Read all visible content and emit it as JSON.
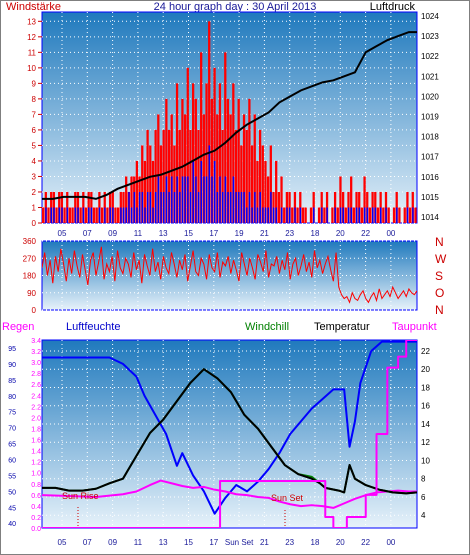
{
  "title": "24 hour graph day : 30 April 2013",
  "colors": {
    "wind": "#ff0000",
    "gust": "#0000ff",
    "pressure": "#000000",
    "humidity": "#0000ff",
    "temperature": "#000000",
    "windchill": "#008000",
    "dewpoint": "#ff00ff",
    "rain": "#ff00ff",
    "axis_red": "#cc0000",
    "axis_blue": "#0000aa",
    "grid": "#ffffff",
    "bg_top": "#1f79bd",
    "bg_bottom": "#e7f2fa"
  },
  "labels": {
    "windstaerke": "Windstärke",
    "luftdruck": "Luftdruck",
    "regen": "Regen",
    "luftfeuchte": "Luftfeuchte",
    "windchill": "Windchill",
    "temperatur": "Temperatur",
    "taupunkt": "Taupunkt",
    "sun_rise": "Sun Rise",
    "sun_set": "Sun Set",
    "sun_set_axis": "Sun Set",
    "dir_n_top": "N",
    "dir_w": "W",
    "dir_s": "S",
    "dir_o": "O",
    "dir_n_bottom": "N"
  },
  "chart_data": [
    {
      "type": "bar",
      "name": "wind",
      "x_ticks": [
        "05",
        "07",
        "09",
        "11",
        "13",
        "15",
        "17",
        "19",
        "21",
        "23",
        "18",
        "20",
        "22",
        "00"
      ],
      "y_left": {
        "label": "Windstärke",
        "ticks": [
          0,
          1,
          2,
          3,
          4,
          5,
          6,
          7,
          8,
          9,
          10,
          11,
          12,
          13
        ],
        "range": [
          0,
          13.6
        ]
      },
      "y_right": {
        "label": "Luftdruck",
        "ticks": [
          1014,
          1015,
          1016,
          1017,
          1018,
          1019,
          1020,
          1021,
          1022,
          1023,
          1024
        ],
        "range": [
          1013.7,
          1024.2
        ]
      },
      "grid": true,
      "series": [
        {
          "name": "Windstärke",
          "kind": "bar-red",
          "values": [
            1,
            2,
            1,
            2,
            2,
            1,
            2,
            2,
            1,
            2,
            1,
            1,
            2,
            2,
            1,
            2,
            1,
            2,
            2,
            1,
            1,
            2,
            1,
            2,
            1,
            2,
            2,
            1,
            1,
            2,
            2,
            3,
            2,
            3,
            3,
            4,
            3,
            5,
            4,
            6,
            5,
            4,
            6,
            7,
            5,
            6,
            8,
            6,
            7,
            5,
            9,
            6,
            8,
            7,
            10,
            6,
            9,
            8,
            6,
            11,
            7,
            9,
            13,
            8,
            10,
            7,
            9,
            6,
            11,
            8,
            7,
            9,
            6,
            8,
            5,
            7,
            6,
            8,
            5,
            7,
            4,
            6,
            5,
            4,
            3,
            5,
            2,
            4,
            2,
            3,
            1,
            2,
            2,
            1,
            2,
            1,
            2,
            1,
            1,
            0,
            1,
            2,
            0,
            1,
            2,
            1,
            2,
            0,
            1,
            2,
            1,
            3,
            2,
            1,
            2,
            3,
            1,
            2,
            2,
            1,
            3,
            2,
            1,
            2,
            2,
            1,
            2,
            1,
            2,
            1,
            0,
            1,
            2,
            1,
            0,
            1,
            2,
            1,
            2,
            1
          ]
        },
        {
          "name": "Böen",
          "kind": "bar-blue",
          "values": [
            0,
            1,
            0,
            1,
            1,
            0,
            1,
            1,
            0,
            1,
            0,
            0,
            1,
            1,
            0,
            1,
            0,
            1,
            1,
            0,
            0,
            1,
            0,
            1,
            0,
            1,
            1,
            0,
            0,
            1,
            1,
            1,
            2,
            1,
            2,
            1,
            2,
            2,
            1,
            2,
            2,
            1,
            2,
            3,
            2,
            2,
            3,
            2,
            3,
            2,
            3,
            2,
            3,
            3,
            3,
            2,
            4,
            3,
            2,
            4,
            3,
            3,
            5,
            3,
            4,
            2,
            3,
            2,
            3,
            2,
            2,
            3,
            2,
            2,
            2,
            2,
            1,
            2,
            1,
            2,
            1,
            2,
            1,
            1,
            1,
            2,
            1,
            1,
            0,
            1,
            0,
            1,
            1,
            0,
            1,
            0,
            1,
            0,
            0,
            0,
            0,
            1,
            0,
            0,
            1,
            0,
            1,
            0,
            0,
            1,
            0,
            1,
            1,
            0,
            1,
            1,
            0,
            1,
            1,
            0,
            1,
            1,
            0,
            1,
            1,
            0,
            1,
            0,
            1,
            0,
            0,
            0,
            1,
            0,
            0,
            0,
            1,
            0,
            1,
            0
          ]
        },
        {
          "name": "Luftdruck",
          "kind": "line",
          "x": [
            0,
            4,
            8,
            12,
            16,
            20,
            24,
            28,
            32,
            36,
            40,
            44,
            48,
            52,
            56,
            60,
            64,
            68,
            72,
            76,
            80,
            84,
            88,
            92,
            96,
            100,
            104,
            108,
            112,
            116,
            120,
            124,
            128,
            132,
            136,
            139
          ],
          "y": [
            1014.9,
            1014.9,
            1015.0,
            1015.0,
            1015.0,
            1014.9,
            1015.1,
            1015.4,
            1015.6,
            1015.8,
            1016.0,
            1016.1,
            1016.3,
            1016.5,
            1016.8,
            1017.1,
            1017.3,
            1017.7,
            1018.2,
            1018.6,
            1018.9,
            1019.2,
            1019.7,
            1020.0,
            1020.3,
            1020.5,
            1020.7,
            1020.8,
            1021.0,
            1021.2,
            1022.2,
            1022.5,
            1022.8,
            1023.0,
            1023.2,
            1023.2
          ]
        }
      ]
    },
    {
      "type": "line",
      "name": "wind-direction",
      "x_ticks": [
        "05",
        "07",
        "09",
        "11",
        "13",
        "15",
        "17",
        "19",
        "21",
        "23",
        "18",
        "20",
        "22",
        "00"
      ],
      "y_left": {
        "ticks": [
          0,
          90,
          180,
          270,
          360
        ],
        "range": [
          0,
          360
        ]
      },
      "y_right_labels": [
        "N",
        "W",
        "S",
        "O",
        "N"
      ],
      "series": [
        {
          "name": "Windrichtung",
          "values": [
            220,
            300,
            180,
            260,
            140,
            280,
            200,
            320,
            240,
            150,
            270,
            190,
            310,
            230,
            170,
            290,
            210,
            130,
            260,
            300,
            180,
            250,
            330,
            160,
            240,
            200,
            280,
            150,
            310,
            220,
            190,
            270,
            240,
            170,
            300,
            210,
            260,
            140,
            290,
            230,
            180,
            320,
            200,
            250,
            160,
            280,
            220,
            190,
            300,
            240,
            170,
            260,
            210,
            290,
            150,
            230,
            310,
            200,
            180,
            270,
            240,
            160,
            290,
            220,
            200,
            300,
            170,
            250,
            230,
            280,
            190,
            260,
            210,
            150,
            300,
            240,
            180,
            270,
            220,
            160,
            290,
            250,
            200,
            310,
            170,
            240,
            230,
            280,
            190,
            260,
            210,
            300,
            160,
            240,
            270,
            180,
            230,
            290,
            200,
            250,
            170,
            310,
            220,
            260,
            190,
            240,
            280,
            210,
            150,
            300,
            120,
            80,
            60,
            70,
            40,
            90,
            60,
            50,
            80,
            100,
            60,
            40,
            70,
            90,
            50,
            110,
            60,
            80,
            100,
            70,
            120,
            90,
            60,
            80,
            100,
            70,
            110,
            90,
            80,
            100
          ]
        }
      ]
    },
    {
      "type": "line",
      "name": "climate",
      "x_ticks": [
        "05",
        "07",
        "09",
        "11",
        "13",
        "15",
        "17",
        "Sun Set",
        "21",
        "23",
        "18",
        "20",
        "22",
        "00"
      ],
      "y_left": {
        "label": "Regen",
        "ticks": [
          0,
          0.2,
          0.4,
          0.6,
          0.8,
          1,
          1.2,
          1.4,
          1.6,
          1.8,
          2,
          2.2,
          2.4,
          2.6,
          2.8,
          3,
          3.2,
          3.4
        ],
        "range": [
          0,
          3.4
        ]
      },
      "y_left2": {
        "label": "Luftfeuchte",
        "ticks": [
          40,
          45,
          50,
          55,
          60,
          65,
          70,
          75,
          80,
          85,
          90,
          95
        ],
        "range": [
          38.5,
          97.5
        ]
      },
      "y_right": {
        "label": "Temperatur",
        "ticks": [
          4,
          6,
          8,
          10,
          12,
          14,
          16,
          18,
          20,
          22
        ],
        "range": [
          2.6,
          23.2
        ]
      },
      "annotations": [
        "Sun Rise",
        "Sun Set"
      ],
      "series": [
        {
          "name": "Luftfeuchte",
          "kind": "line-blue",
          "x": [
            0,
            10,
            20,
            25,
            30,
            35,
            38,
            42,
            46,
            50,
            52,
            56,
            60,
            64,
            68,
            72,
            76,
            80,
            84,
            88,
            92,
            96,
            100,
            104,
            108,
            112,
            114,
            116,
            118,
            122,
            126,
            130,
            134,
            139
          ],
          "y": [
            92,
            92,
            92,
            92,
            90,
            86,
            80,
            74,
            68,
            58,
            62,
            55,
            50,
            43,
            48,
            52,
            50,
            53,
            57,
            62,
            68,
            72,
            76,
            79,
            82,
            82,
            64,
            72,
            84,
            94,
            97,
            97,
            97,
            97
          ]
        },
        {
          "name": "Temperatur",
          "kind": "line-black",
          "x": [
            0,
            5,
            10,
            15,
            20,
            25,
            30,
            35,
            40,
            45,
            50,
            55,
            60,
            65,
            70,
            75,
            80,
            85,
            90,
            95,
            100,
            103,
            105,
            110,
            112,
            114,
            116,
            120,
            125,
            130,
            135,
            139
          ],
          "y": [
            7.0,
            7.0,
            6.7,
            6.7,
            6.9,
            7.5,
            8.0,
            10.5,
            13.0,
            14.5,
            16.5,
            18.5,
            20.0,
            19.0,
            17.5,
            15.0,
            13.5,
            11.5,
            9.5,
            8.5,
            8.0,
            7.5,
            7.0,
            6.7,
            6.5,
            9.5,
            8.0,
            7.3,
            6.8,
            6.5,
            6.4,
            6.5
          ]
        },
        {
          "name": "Windchill",
          "kind": "line-green",
          "x": [
            0,
            5,
            10,
            15,
            20,
            25,
            30,
            35,
            40,
            45,
            50,
            55,
            60,
            65,
            70,
            75,
            80,
            85,
            90,
            95,
            100,
            103,
            105,
            110,
            112,
            114,
            116,
            120,
            125,
            130,
            135,
            139
          ],
          "y": [
            7.0,
            7.0,
            6.7,
            6.7,
            6.9,
            7.5,
            8.0,
            10.5,
            13.0,
            14.5,
            16.5,
            18.5,
            20.0,
            19.0,
            17.5,
            15.0,
            13.5,
            11.5,
            9.5,
            8.5,
            8.2,
            7.5,
            7.0,
            6.7,
            6.5,
            9.5,
            8.0,
            7.3,
            6.8,
            6.5,
            6.4,
            6.5
          ]
        },
        {
          "name": "Taupunkt",
          "kind": "line-magenta",
          "x": [
            0,
            10,
            20,
            30,
            35,
            40,
            44,
            48,
            52,
            56,
            60,
            64,
            68,
            72,
            76,
            80,
            84,
            88,
            92,
            96,
            100,
            104,
            108,
            112,
            116,
            120,
            124,
            128,
            132,
            136,
            139
          ],
          "y": [
            6.2,
            6.1,
            6.0,
            6.3,
            6.6,
            7.3,
            7.8,
            7.5,
            7.2,
            7.0,
            7.1,
            6.8,
            6.6,
            6.3,
            6.2,
            6.0,
            5.9,
            5.5,
            5.2,
            5.0,
            5.1,
            5.0,
            4.8,
            5.3,
            5.8,
            6.2,
            6.5,
            6.6,
            6.7,
            6.6,
            6.6
          ]
        },
        {
          "name": "Regen",
          "kind": "step-magenta",
          "x": [
            0,
            66,
            66,
            105,
            105,
            108,
            108,
            113,
            113,
            120,
            120,
            124,
            124,
            128,
            128,
            132,
            132,
            135,
            135,
            139
          ],
          "y": [
            0,
            0,
            0.85,
            0.85,
            0.2,
            0.2,
            0,
            0,
            0.2,
            0.2,
            0.6,
            0.6,
            1.7,
            1.7,
            2.9,
            2.9,
            3.1,
            3.1,
            3.4,
            3.4
          ]
        }
      ]
    }
  ]
}
